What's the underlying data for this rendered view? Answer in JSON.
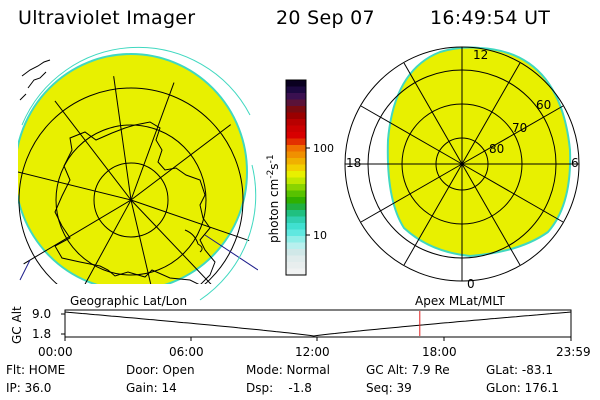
{
  "header": {
    "instrument": "Ultraviolet Imager",
    "date": "20 Sep 07",
    "time": "16:49:54 UT"
  },
  "colorbar": {
    "label": "photon cm",
    "label_sup1": "-2",
    "label_s": "s",
    "label_sup2": "-1",
    "ticks": [
      "100",
      "10"
    ],
    "colors": [
      "#0a0020",
      "#1c0840",
      "#3a1050",
      "#5a1238",
      "#7a0a10",
      "#9a0000",
      "#b80000",
      "#cc0000",
      "#d80000",
      "#e33000",
      "#f07000",
      "#f09000",
      "#f0b000",
      "#f2d000",
      "#e8f000",
      "#c0e800",
      "#8ad400",
      "#58c200",
      "#30b000",
      "#20b040",
      "#20c080",
      "#30d0b0",
      "#40e0d0",
      "#60e8e0",
      "#90eee8",
      "#b8f0ee",
      "#d0e8e8",
      "#e0ecec",
      "#e8eeee",
      "#f0f2f2"
    ]
  },
  "left_map": {
    "label": "Geographic Lat/Lon",
    "fill_color": "#e8f000"
  },
  "right_map": {
    "label": "Apex  MLat/MLT",
    "mlt_labels": {
      "top": "12",
      "left": "18",
      "right": "6",
      "bottom": "0"
    },
    "lat_labels": [
      "60",
      "70",
      "80"
    ]
  },
  "orbit_plot": {
    "ylabel": "GC Alt",
    "ytick_top": "9.0",
    "ytick_bottom": "1.8",
    "xticks": [
      "00:00",
      "06:00",
      "12:00",
      "18:00",
      "23:59"
    ],
    "current_time_marker_hours": 16.83,
    "min_altitude_time_hours": 11.8
  },
  "info": {
    "flt": "Flt: HOME",
    "door": "Door: Open",
    "mode": "Mode: Normal",
    "gc_alt": "GC Alt: 7.9 Re",
    "glat": "GLat: -83.1",
    "ip": "IP: 36.0",
    "gain": "Gain: 14",
    "dsp": "Dsp:    -1.8",
    "seq": "Seq: 39",
    "glon": "GLon: 176.1"
  }
}
